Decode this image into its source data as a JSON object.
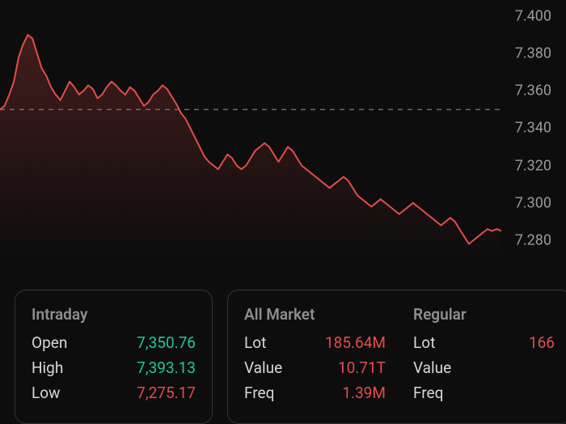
{
  "chart": {
    "type": "line",
    "ylim": [
      7270,
      7400
    ],
    "ytick_step": 20,
    "yticks": [
      7400,
      7380,
      7360,
      7340,
      7320,
      7300,
      7280
    ],
    "ytick_labels": [
      "7.400",
      "7.380",
      "7.360",
      "7.340",
      "7.320",
      "7.300",
      "7.280"
    ],
    "reference_line": 7350,
    "line_color": "#e64b4b",
    "fill_color_top": "rgba(230,75,75,0.25)",
    "fill_color_bottom": "rgba(230,75,75,0.0)",
    "reference_color": "#6a6a6a",
    "background_color": "#0d0d0d",
    "label_color": "#9a9a9a",
    "label_fontsize": 18,
    "line_width": 2,
    "series": [
      7350,
      7352,
      7358,
      7365,
      7378,
      7385,
      7390,
      7388,
      7380,
      7372,
      7368,
      7362,
      7358,
      7355,
      7360,
      7365,
      7362,
      7358,
      7360,
      7363,
      7361,
      7356,
      7358,
      7362,
      7365,
      7363,
      7360,
      7358,
      7362,
      7360,
      7356,
      7352,
      7354,
      7358,
      7360,
      7363,
      7361,
      7357,
      7353,
      7348,
      7345,
      7340,
      7335,
      7330,
      7325,
      7322,
      7320,
      7318,
      7322,
      7326,
      7324,
      7320,
      7318,
      7320,
      7324,
      7328,
      7330,
      7332,
      7330,
      7326,
      7322,
      7326,
      7330,
      7328,
      7324,
      7320,
      7318,
      7316,
      7314,
      7312,
      7310,
      7308,
      7310,
      7312,
      7314,
      7312,
      7308,
      7304,
      7302,
      7300,
      7298,
      7300,
      7302,
      7300,
      7298,
      7296,
      7294,
      7296,
      7298,
      7300,
      7298,
      7296,
      7294,
      7292,
      7290,
      7288,
      7290,
      7292,
      7290,
      7286,
      7282,
      7278,
      7280,
      7282,
      7284,
      7286,
      7285,
      7286,
      7285
    ]
  },
  "cards": {
    "intraday": {
      "title": "Intraday",
      "rows": [
        {
          "label": "Open",
          "value": "7,350.76",
          "color": "green"
        },
        {
          "label": "High",
          "value": "7,393.13",
          "color": "green"
        },
        {
          "label": "Low",
          "value": "7,275.17",
          "color": "red"
        }
      ]
    },
    "all_market": {
      "title": "All Market",
      "rows": [
        {
          "label": "Lot",
          "value": "185.64M",
          "color": "red"
        },
        {
          "label": "Value",
          "value": "10.71T",
          "color": "red"
        },
        {
          "label": "Freq",
          "value": "1.39M",
          "color": "red"
        }
      ]
    },
    "regular": {
      "title": "Regular",
      "rows": [
        {
          "label": "Lot",
          "value": "166",
          "color": "red"
        },
        {
          "label": "Value",
          "value": "",
          "color": "red"
        },
        {
          "label": "Freq",
          "value": "",
          "color": "red"
        }
      ]
    }
  }
}
